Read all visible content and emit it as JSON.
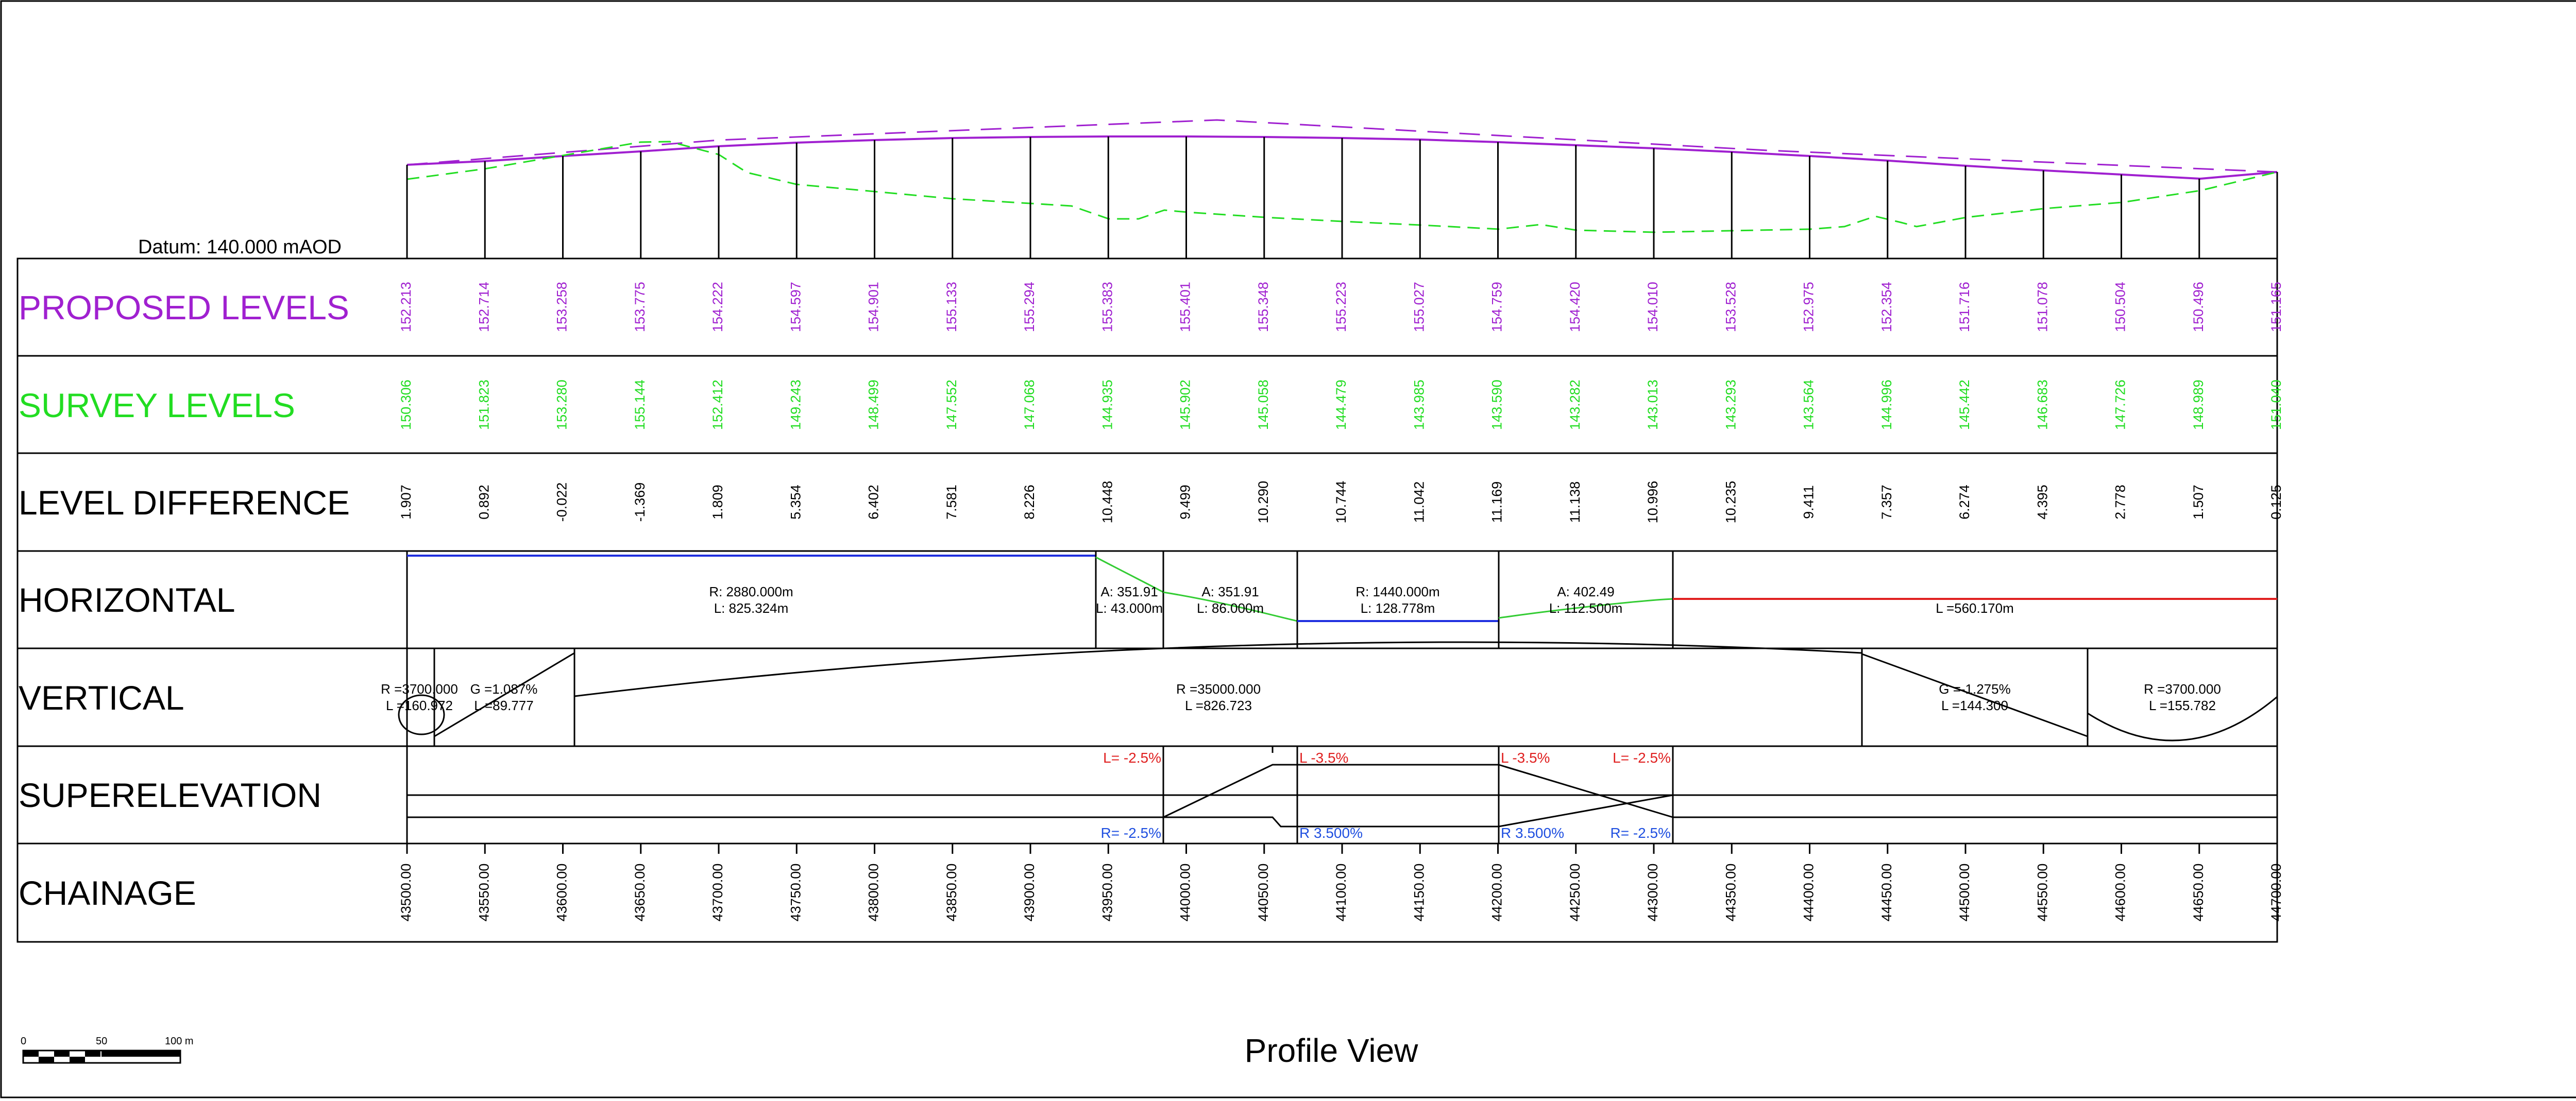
{
  "title": "Profile View",
  "datum": "Datum: 140.000 mAOD",
  "row_labels": {
    "proposed": "PROPOSED LEVELS",
    "survey": "SURVEY LEVELS",
    "difference": "LEVEL DIFFERENCE",
    "horizontal": "HORIZONTAL",
    "vertical": "VERTICAL",
    "superelevation": "SUPERELEVATION",
    "chainage": "CHAINAGE"
  },
  "colors": {
    "proposed": "#a020d0",
    "survey": "#22dd22",
    "straight_red": "#e02020",
    "curve_blue": "#2030e0",
    "transition_green": "#33cc33",
    "super_red": "#e02020",
    "super_blue": "#1f4fe0",
    "ink": "#000000"
  },
  "chainages": [
    "43500.00",
    "43550.00",
    "43600.00",
    "43650.00",
    "43700.00",
    "43750.00",
    "43800.00",
    "43850.00",
    "43900.00",
    "43950.00",
    "44000.00",
    "44050.00",
    "44100.00",
    "44150.00",
    "44200.00",
    "44250.00",
    "44300.00",
    "44350.00",
    "44400.00",
    "44450.00",
    "44500.00",
    "44550.00",
    "44600.00",
    "44650.00",
    "44700.00"
  ],
  "proposed_levels": [
    "152.213",
    "152.714",
    "153.258",
    "153.775",
    "154.222",
    "154.597",
    "154.901",
    "155.133",
    "155.294",
    "155.383",
    "155.401",
    "155.348",
    "155.223",
    "155.027",
    "154.759",
    "154.420",
    "154.010",
    "153.528",
    "152.975",
    "152.354",
    "151.716",
    "151.078",
    "150.504",
    "150.496",
    "151.165"
  ],
  "survey_levels": [
    "150.306",
    "151.823",
    "153.280",
    "155.144",
    "152.412",
    "149.243",
    "148.499",
    "147.552",
    "147.068",
    "144.935",
    "145.902",
    "145.058",
    "144.479",
    "143.985",
    "143.590",
    "143.282",
    "143.013",
    "143.293",
    "143.564",
    "144.996",
    "145.442",
    "146.683",
    "147.726",
    "148.989",
    "151.040"
  ],
  "level_differences": [
    "1.907",
    "0.892",
    "-0.022",
    "-1.369",
    "1.809",
    "5.354",
    "6.402",
    "7.581",
    "8.226",
    "10.448",
    "9.499",
    "10.290",
    "10.744",
    "11.042",
    "11.169",
    "11.138",
    "10.996",
    "10.235",
    "9.411",
    "7.357",
    "6.274",
    "4.395",
    "2.778",
    "1.507",
    "0.125"
  ],
  "horizontal": [
    {
      "line1": "R: 2880.000m",
      "line2": "L: 825.324m"
    },
    {
      "line1": "A: 351.91",
      "line2": "L: 43.000m"
    },
    {
      "line1": "A: 351.91",
      "line2": "L: 86.000m"
    },
    {
      "line1": "R: 1440.000m",
      "line2": "L: 128.778m"
    },
    {
      "line1": "A: 402.49",
      "line2": "L: 112.500m"
    },
    {
      "line1": "",
      "line2": "L =560.170m"
    }
  ],
  "vertical": [
    {
      "line1": "R =3700.000",
      "line2": "L =160.972"
    },
    {
      "line1": "G =1.087%",
      "line2": "L =89.777"
    },
    {
      "line1": "R =35000.000",
      "line2": "L =826.723"
    },
    {
      "line1": "G =-1.275%",
      "line2": "L =144.300"
    },
    {
      "line1": "R =3700.000",
      "line2": "L =155.782"
    }
  ],
  "superelevation": {
    "left": [
      "L= -2.5%",
      "L -3.5%",
      "L -3.5%",
      "L= -2.5%"
    ],
    "right": [
      "R= -2.5%",
      "R 3.500%",
      "R 3.500%",
      "R= -2.5%"
    ]
  },
  "scale_bar": {
    "labels": [
      "0",
      "50",
      "100 m"
    ]
  }
}
